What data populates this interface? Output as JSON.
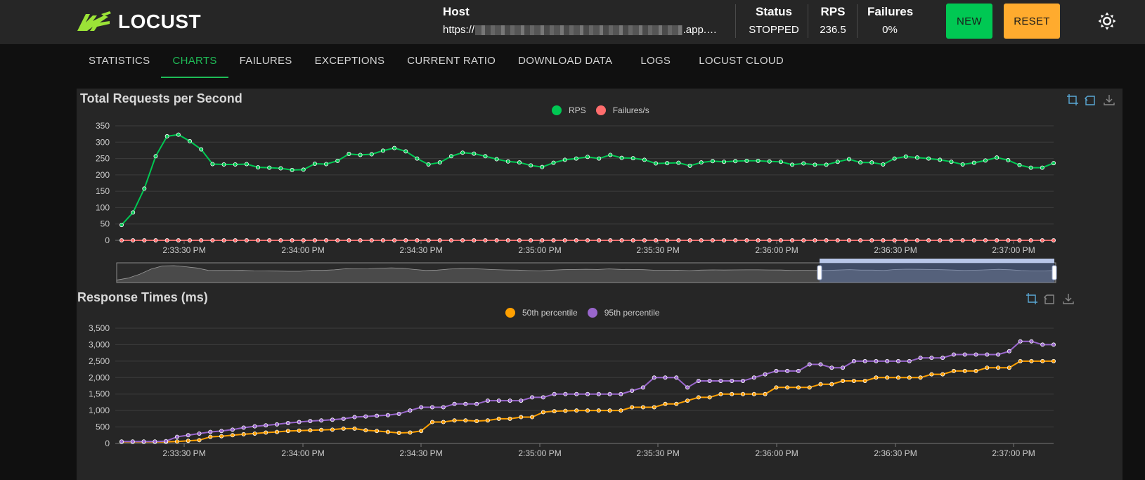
{
  "app": {
    "name": "LOCUST"
  },
  "header": {
    "host_label": "Host",
    "host_prefix": "https://",
    "host_suffix": ".app.…",
    "status_label": "Status",
    "status_value": "STOPPED",
    "rps_label": "RPS",
    "rps_value": "236.5",
    "failures_label": "Failures",
    "failures_value": "0%",
    "new_button": "NEW",
    "reset_button": "RESET",
    "theme_icon": "sun-icon"
  },
  "tabs": [
    {
      "label": "STATISTICS",
      "active": false
    },
    {
      "label": "CHARTS",
      "active": true
    },
    {
      "label": "FAILURES",
      "active": false
    },
    {
      "label": "EXCEPTIONS",
      "active": false
    },
    {
      "label": "CURRENT RATIO",
      "active": false
    },
    {
      "label": "DOWNLOAD DATA",
      "active": false
    },
    {
      "label": "LOGS",
      "active": false
    },
    {
      "label": "LOCUST CLOUD",
      "active": false
    }
  ],
  "colors": {
    "rps": "#00c853",
    "failures": "#ff6d6d",
    "p50": "#ffa000",
    "p95": "#9966cc",
    "accent_tab": "#1fbc57",
    "new_button": "#00c853",
    "reset_button": "#ffab2e"
  },
  "chart_data": [
    {
      "type": "line",
      "title": "Total Requests per Second",
      "x_ticks": [
        "2:33:30 PM",
        "2:34:00 PM",
        "2:34:30 PM",
        "2:35:00 PM",
        "2:35:30 PM",
        "2:36:00 PM",
        "2:36:30 PM",
        "2:37:00 PM"
      ],
      "y_ticks": [
        "0",
        "50",
        "100",
        "150",
        "200",
        "250",
        "300",
        "350"
      ],
      "ylim": [
        0,
        350
      ],
      "grid": true,
      "legend_position": "top-center",
      "has_data_zoom": true,
      "series": [
        {
          "name": "RPS",
          "color": "#00c853",
          "values": [
            47,
            85,
            158,
            257,
            318,
            323,
            303,
            278,
            233,
            232,
            232,
            233,
            223,
            222,
            220,
            215,
            216,
            234,
            233,
            243,
            264,
            261,
            263,
            274,
            282,
            272,
            250,
            232,
            238,
            257,
            268,
            265,
            257,
            248,
            241,
            238,
            229,
            224,
            237,
            246,
            250,
            255,
            250,
            261,
            252,
            251,
            246,
            235,
            236,
            237,
            228,
            238,
            242,
            240,
            242,
            243,
            243,
            241,
            240,
            231,
            235,
            231,
            231,
            240,
            248,
            238,
            238,
            232,
            250,
            256,
            253,
            250,
            246,
            240,
            232,
            237,
            244,
            253,
            245,
            230,
            222,
            222,
            236
          ]
        },
        {
          "name": "Failures/s",
          "color": "#ff6d6d",
          "values": [
            0,
            0,
            0,
            0,
            0,
            0,
            0,
            0,
            0,
            0,
            0,
            0,
            0,
            0,
            0,
            0,
            0,
            0,
            0,
            0,
            0,
            0,
            0,
            0,
            0,
            0,
            0,
            0,
            0,
            0,
            0,
            0,
            0,
            0,
            0,
            0,
            0,
            0,
            0,
            0,
            0,
            0,
            0,
            0,
            0,
            0,
            0,
            0,
            0,
            0,
            0,
            0,
            0,
            0,
            0,
            0,
            0,
            0,
            0,
            0,
            0,
            0,
            0,
            0,
            0,
            0,
            0,
            0,
            0,
            0,
            0,
            0,
            0,
            0,
            0,
            0,
            0,
            0,
            0,
            0,
            0,
            0,
            0
          ]
        }
      ]
    },
    {
      "type": "line",
      "title": "Response Times (ms)",
      "x_ticks": [
        "2:33:30 PM",
        "2:34:00 PM",
        "2:34:30 PM",
        "2:35:00 PM",
        "2:35:30 PM",
        "2:36:00 PM",
        "2:36:30 PM",
        "2:37:00 PM"
      ],
      "y_ticks": [
        "0",
        "500",
        "1,000",
        "1,500",
        "2,000",
        "2,500",
        "3,000",
        "3,500"
      ],
      "ylim": [
        0,
        3500
      ],
      "grid": true,
      "legend_position": "top-center",
      "series": [
        {
          "name": "50th percentile",
          "color": "#ffa000",
          "values": [
            50,
            50,
            50,
            50,
            50,
            60,
            80,
            100,
            200,
            220,
            250,
            280,
            300,
            330,
            350,
            380,
            390,
            400,
            410,
            420,
            450,
            450,
            400,
            380,
            350,
            320,
            330,
            380,
            650,
            650,
            700,
            700,
            680,
            700,
            750,
            750,
            800,
            800,
            950,
            980,
            990,
            1000,
            1000,
            1000,
            1000,
            1000,
            1100,
            1100,
            1100,
            1200,
            1200,
            1300,
            1400,
            1400,
            1500,
            1500,
            1500,
            1500,
            1500,
            1700,
            1700,
            1700,
            1700,
            1800,
            1800,
            1900,
            1900,
            1900,
            2000,
            2000,
            2000,
            2000,
            2000,
            2100,
            2100,
            2200,
            2200,
            2200,
            2300,
            2300,
            2300,
            2500,
            2500,
            2500,
            2500
          ]
        },
        {
          "name": "95th percentile",
          "color": "#9966cc",
          "values": [
            60,
            60,
            60,
            60,
            70,
            200,
            250,
            300,
            350,
            380,
            420,
            480,
            520,
            550,
            580,
            620,
            650,
            680,
            700,
            720,
            750,
            800,
            820,
            840,
            860,
            900,
            1000,
            1100,
            1100,
            1100,
            1200,
            1200,
            1200,
            1300,
            1300,
            1300,
            1300,
            1400,
            1400,
            1500,
            1500,
            1500,
            1500,
            1500,
            1500,
            1500,
            1600,
            1700,
            2000,
            2000,
            2000,
            1700,
            1900,
            1900,
            1900,
            1900,
            1900,
            2000,
            2100,
            2200,
            2200,
            2200,
            2400,
            2400,
            2300,
            2300,
            2500,
            2500,
            2500,
            2500,
            2500,
            2500,
            2600,
            2600,
            2600,
            2700,
            2700,
            2700,
            2700,
            2700,
            2800,
            3100,
            3100,
            3000,
            3000
          ]
        }
      ]
    }
  ]
}
